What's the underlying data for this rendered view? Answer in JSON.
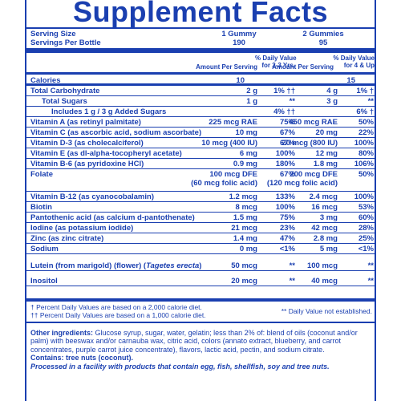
{
  "title": "Supplement Facts",
  "serving": {
    "size_label": "Serving Size",
    "per_bottle_label": "Servings Per Bottle",
    "col1_size": "1 Gummy",
    "col1_per_bottle": "190",
    "col2_size": "2 Gummies",
    "col2_per_bottle": "95"
  },
  "headers": {
    "amount1": "Amount Per Serving",
    "dv1_line1": "% Daily Value",
    "dv1_line2": "for 2-3 Yrs.",
    "amount2": "Amount Per Serving",
    "dv2_line1": "% Daily Value",
    "dv2_line2": "for 4 & Up"
  },
  "rows": [
    {
      "name": "Calories",
      "a1": "10",
      "d1": "",
      "a2": "15",
      "d2": ""
    },
    {
      "name": "Total Carbohydrate",
      "a1": "2 g",
      "d1": "1% ††",
      "a2": "4 g",
      "d2": "1% †"
    },
    {
      "name": "Total Sugars",
      "a1": "1 g",
      "d1": "**",
      "a2": "3 g",
      "d2": "**"
    },
    {
      "name": "Includes 1 g / 3 g Added Sugars",
      "a1": "",
      "d1": "4% ††",
      "a2": "",
      "d2": "6% †"
    },
    {
      "name": "Vitamin A (as retinyl palmitate)",
      "a1": "225 mcg RAE",
      "d1": "75%",
      "a2": "450 mcg RAE",
      "d2": "50%"
    },
    {
      "name": "Vitamin C (as ascorbic acid, sodium ascorbate)",
      "a1": "10 mg",
      "d1": "67%",
      "a2": "20 mg",
      "d2": "22%"
    },
    {
      "name": "Vitamin D-3 (as cholecalciferol)",
      "a1": "10 mcg (400 IU)",
      "d1": "67%",
      "a2": "20 mcg (800 IU)",
      "d2": "100%"
    },
    {
      "name": "Vitamin E (as dl-alpha-tocopheryl acetate)",
      "a1": "6 mg",
      "d1": "100%",
      "a2": "12 mg",
      "d2": "80%"
    },
    {
      "name": "Vitamin B-6 (as pyridoxine HCl)",
      "a1": "0.9 mg",
      "d1": "180%",
      "a2": "1.8 mg",
      "d2": "106%"
    },
    {
      "name": "Folate",
      "a1": "100 mcg DFE",
      "a1b": "(60 mcg folic acid)",
      "d1": "67%",
      "a2": "200 mcg DFE",
      "a2b": "(120 mcg folic acid)",
      "d2": "50%"
    },
    {
      "name": "Vitamin B-12 (as cyanocobalamin)",
      "a1": "1.2 mcg",
      "d1": "133%",
      "a2": "2.4 mcg",
      "d2": "100%"
    },
    {
      "name": "Biotin",
      "a1": "8 mcg",
      "d1": "100%",
      "a2": "16 mcg",
      "d2": "53%"
    },
    {
      "name": "Pantothenic acid (as calcium d-pantothenate)",
      "a1": "1.5 mg",
      "d1": "75%",
      "a2": "3 mg",
      "d2": "60%"
    },
    {
      "name": "Iodine (as potassium iodide)",
      "a1": "21 mcg",
      "d1": "23%",
      "a2": "42 mcg",
      "d2": "28%"
    },
    {
      "name": "Zinc (as zinc citrate)",
      "a1": "1.4 mg",
      "d1": "47%",
      "a2": "2.8 mg",
      "d2": "25%"
    },
    {
      "name": "Sodium",
      "a1": "0 mg",
      "d1": "<1%",
      "a2": "5 mg",
      "d2": "<1%"
    },
    {
      "name": "Lutein (from marigold) (flower) (",
      "name_ital": "Tagetes erecta",
      "name_end": ")",
      "a1": "50 mcg",
      "d1": "**",
      "a2": "100 mcg",
      "d2": "**"
    },
    {
      "name": "Inositol",
      "a1": "20 mcg",
      "d1": "**",
      "a2": "40 mcg",
      "d2": "**"
    }
  ],
  "footnotes": {
    "line1": "† Percent Daily Values are based on a 2,000 calorie diet.",
    "line2": "†† Percent Daily Values are based on a 1,000 calorie diet.",
    "not_established": "** Daily Value not established."
  },
  "other": {
    "label": "Other ingredients:",
    "text": " Glucose syrup, sugar, water, gelatin; less than 2% of: blend of oils (coconut and/or palm) with beeswax and/or carnauba wax, citric acid, colors (annato extract, blueberry, and carrot concentrates, purple carrot juice concentrate), flavors, lactic acid, pectin, and sodium citrate.",
    "contains": "Contains: tree nuts (coconut).",
    "processed": "Processed in a facility with products that contain egg, fish, shellfish, soy and tree nuts."
  },
  "colors": {
    "ink": "#1a3fb0",
    "background": "#ffffff"
  }
}
